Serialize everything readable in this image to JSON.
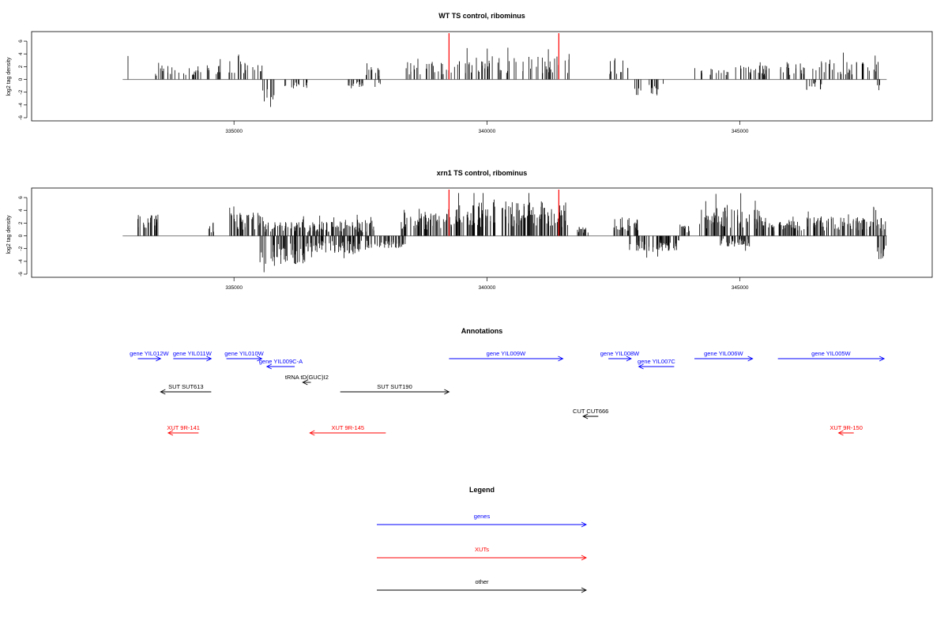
{
  "chart_data": [
    {
      "type": "bar",
      "title": "WT TS control, ribominus",
      "ylabel": "log2 tag density",
      "xlabel": "",
      "xlim": [
        331000,
        348800
      ],
      "ylim": [
        -6,
        7
      ],
      "x_ticks": [
        335000,
        340000,
        345000
      ],
      "x_tick_labels": [
        "335000",
        "340000",
        "345000"
      ],
      "y_ticks": [
        -6,
        -4,
        -2,
        0,
        2,
        4,
        6
      ],
      "y_tick_labels": [
        "-6",
        "-4",
        "-2",
        "0",
        "2",
        "4",
        "6"
      ],
      "marker_color": "#ff0000",
      "markers": [
        339250,
        341420
      ],
      "pos_regions": [
        [
          332900,
          332950,
          3.0
        ],
        [
          333400,
          334800,
          1.6
        ],
        [
          334900,
          335600,
          2.2
        ],
        [
          337500,
          337900,
          1.5
        ],
        [
          338400,
          339400,
          2.0
        ],
        [
          339400,
          340900,
          2.5
        ],
        [
          340900,
          341650,
          2.6
        ],
        [
          342400,
          342800,
          2.2
        ],
        [
          344100,
          345600,
          1.6
        ],
        [
          345800,
          346600,
          2.0
        ],
        [
          346600,
          347800,
          2.2
        ]
      ],
      "neg_regions": [
        [
          335500,
          335800,
          -2.6
        ],
        [
          336000,
          336500,
          -1.2
        ],
        [
          337200,
          337900,
          -1.0
        ],
        [
          342900,
          343500,
          -1.8
        ],
        [
          346300,
          346700,
          -1.2
        ],
        [
          347700,
          347800,
          -2.2
        ]
      ]
    },
    {
      "type": "bar",
      "title": "xrn1 TS control, ribominus",
      "ylabel": "log2 tag density",
      "xlabel": "",
      "xlim": [
        331000,
        348800
      ],
      "ylim": [
        -6,
        7
      ],
      "x_ticks": [
        335000,
        340000,
        345000
      ],
      "x_tick_labels": [
        "335000",
        "340000",
        "345000"
      ],
      "y_ticks": [
        -6,
        -4,
        -2,
        0,
        2,
        4,
        6
      ],
      "y_tick_labels": [
        "-6",
        "-4",
        "-2",
        "0",
        "2",
        "4",
        "6"
      ],
      "marker_color": "#ff0000",
      "markers": [
        339250,
        341420
      ],
      "pos_regions": [
        [
          333100,
          333500,
          2.4
        ],
        [
          334500,
          334600,
          1.5
        ],
        [
          334900,
          335600,
          2.6
        ],
        [
          335600,
          337800,
          1.6
        ],
        [
          338300,
          339200,
          2.6
        ],
        [
          339200,
          341600,
          3.8
        ],
        [
          341700,
          342000,
          1.0
        ],
        [
          342500,
          343000,
          2.0
        ],
        [
          343800,
          344000,
          1.2
        ],
        [
          344200,
          345400,
          3.2
        ],
        [
          345400,
          346300,
          1.8
        ],
        [
          346300,
          347900,
          2.2
        ]
      ],
      "neg_regions": [
        [
          335500,
          336400,
          -3.2
        ],
        [
          336400,
          337600,
          -2.0
        ],
        [
          337600,
          338400,
          -1.4
        ],
        [
          342800,
          343800,
          -1.8
        ],
        [
          344600,
          345200,
          -1.2
        ],
        [
          347700,
          347900,
          -2.6
        ]
      ]
    }
  ],
  "annotations": {
    "title": "Annotations",
    "items": [
      {
        "label": "gene YIL012W",
        "color": "#0000ff",
        "start": 333100,
        "end": 333550,
        "row": 0
      },
      {
        "label": "gene YIL011W",
        "color": "#0000ff",
        "start": 333800,
        "end": 334550,
        "row": 0
      },
      {
        "label": "gene YIL010W",
        "color": "#0000ff",
        "start": 334850,
        "end": 335550,
        "row": 0
      },
      {
        "label": "gene YIL009C-A",
        "color": "#0000ff",
        "start": 336200,
        "end": 335650,
        "row": 1
      },
      {
        "label": "gene YIL009W",
        "color": "#0000ff",
        "start": 339250,
        "end": 341500,
        "row": 0
      },
      {
        "label": "gene YIL008W",
        "color": "#0000ff",
        "start": 342400,
        "end": 342850,
        "row": 0
      },
      {
        "label": "gene YIL007C",
        "color": "#0000ff",
        "start": 343700,
        "end": 343000,
        "row": 1
      },
      {
        "label": "gene YIL006W",
        "color": "#0000ff",
        "start": 344100,
        "end": 345250,
        "row": 0
      },
      {
        "label": "gene YIL005W",
        "color": "#0000ff",
        "start": 345750,
        "end": 347850,
        "row": 0
      },
      {
        "label": "tRNA tD(GUC)I2",
        "color": "#000000",
        "start": 336520,
        "end": 336360,
        "row": 2
      },
      {
        "label": "SUT SUT190",
        "color": "#000000",
        "start": 337100,
        "end": 339250,
        "row": 3
      },
      {
        "label": "SUT SUT613",
        "color": "#000000",
        "start": 334550,
        "end": 333550,
        "row": 3
      },
      {
        "label": "CUT CUT666",
        "color": "#000000",
        "start": 342200,
        "end": 341900,
        "row": 4
      },
      {
        "label": "XUT 9R-141",
        "color": "#ff0000",
        "start": 334300,
        "end": 333700,
        "row": 5
      },
      {
        "label": "XUT 9R-145",
        "color": "#ff0000",
        "start": 338000,
        "end": 336500,
        "row": 5
      },
      {
        "label": "XUT 9R-150",
        "color": "#ff0000",
        "start": 347250,
        "end": 346950,
        "row": 5
      }
    ]
  },
  "legend": {
    "title": "Legend",
    "items": [
      {
        "label": "genes",
        "color": "#0000ff"
      },
      {
        "label": "XUTs",
        "color": "#ff0000"
      },
      {
        "label": "other",
        "color": "#000000"
      }
    ]
  }
}
